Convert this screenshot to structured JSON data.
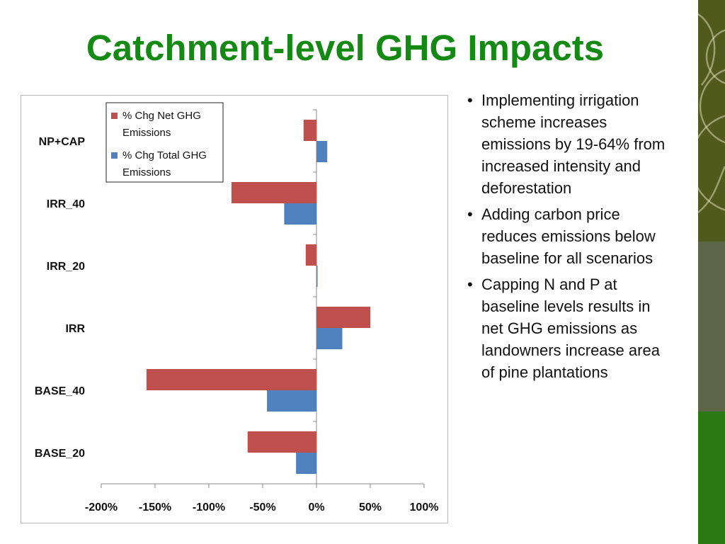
{
  "slide": {
    "title": "Catchment-level GHG Impacts",
    "bullets": [
      "Implementing irrigation scheme increases emissions by 19-64% from increased intensity and deforestation",
      "Adding carbon price reduces emissions below baseline for all scenarios",
      "Capping N and P at baseline levels results in net GHG emissions as landowners increase area of pine plantations"
    ],
    "bullet_glyph": "•"
  },
  "colors": {
    "title": "#148a14",
    "net_series": "#c0504d",
    "total_series": "#4f81bd",
    "strip_top": "#4f5a1c",
    "strip_mid": "#5f6648",
    "strip_bottom": "#2a7a12"
  },
  "chart_data": {
    "type": "bar",
    "orientation": "horizontal",
    "title": "",
    "xlabel": "",
    "ylabel": "",
    "categories": [
      "NP+CAP",
      "IRR_40",
      "IRR_20",
      "IRR",
      "BASE_40",
      "BASE_20"
    ],
    "series": [
      {
        "name": "% Chg Net GHG Emissions",
        "values": [
          -12,
          -79,
          -10,
          50,
          -158,
          -64
        ]
      },
      {
        "name": "% Chg Total GHG Emissions",
        "values": [
          10,
          -30,
          1,
          24,
          -46,
          -19
        ]
      }
    ],
    "xlim": [
      -200,
      100
    ],
    "xticks": [
      -200,
      -150,
      -100,
      -50,
      0,
      50,
      100
    ],
    "xtick_labels": [
      "-200%",
      "-150%",
      "-100%",
      "-50%",
      "0%",
      "50%",
      "100%"
    ],
    "grid": false,
    "legend_position": "top-left"
  }
}
